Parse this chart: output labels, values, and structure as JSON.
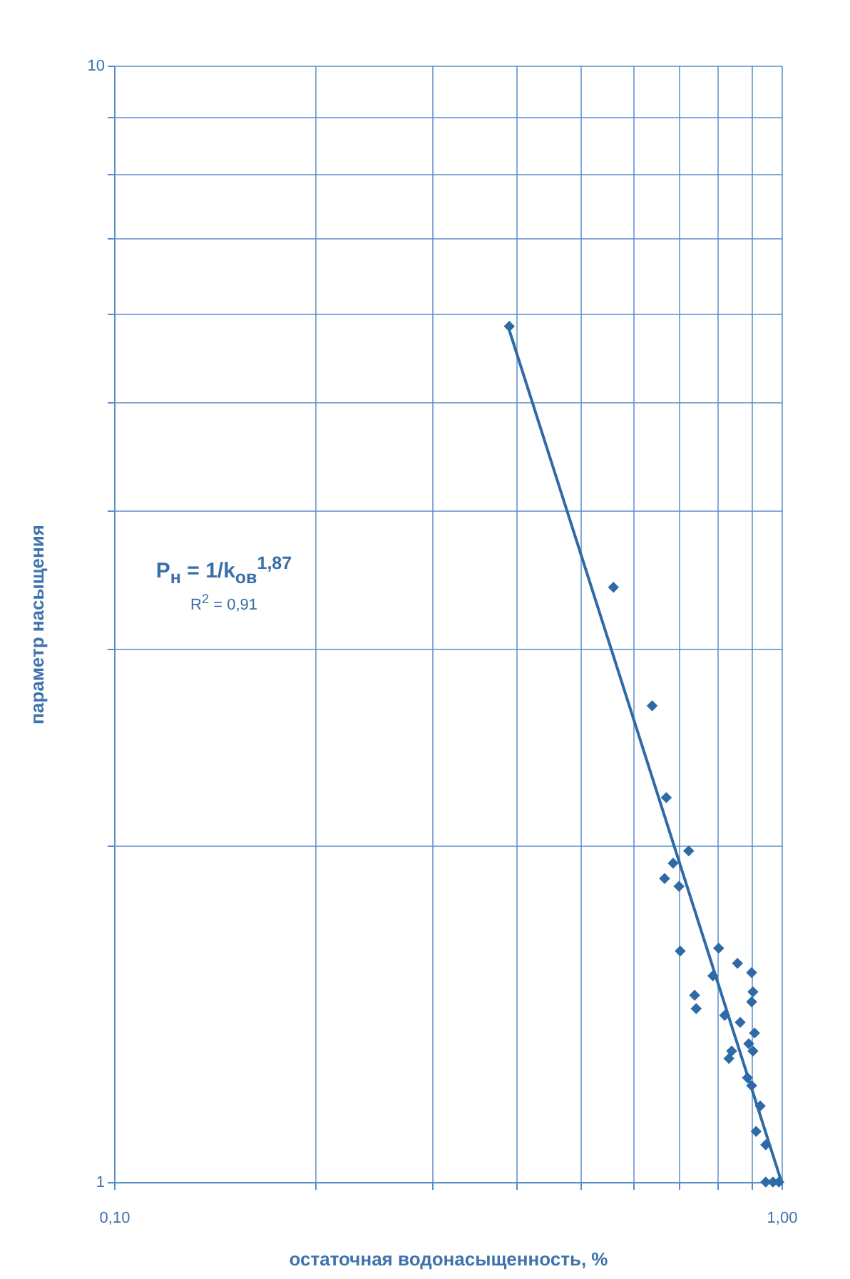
{
  "chart_data": {
    "type": "scatter",
    "xlabel": "остаточная водонасыщенность, %",
    "ylabel": "параметр насыщения",
    "annotations": [
      "P$_{н}$ = 1/k$_{ов}$$^{1,87}$",
      "R$^{2}$ = 0,91"
    ],
    "log": "xy",
    "grid": true,
    "xlim": [
      0.1,
      1
    ],
    "ylim": [
      1,
      10
    ],
    "xticks": [
      {
        "value": 0.1,
        "label": "0,10"
      },
      {
        "value": 0.2,
        "label": null
      },
      {
        "value": 0.3,
        "label": null
      },
      {
        "value": 0.4,
        "label": null
      },
      {
        "value": 0.5,
        "label": null
      },
      {
        "value": 0.6,
        "label": null
      },
      {
        "value": 0.7,
        "label": null
      },
      {
        "value": 0.8,
        "label": null
      },
      {
        "value": 0.9,
        "label": null
      },
      {
        "value": 1,
        "label": "1,00"
      }
    ],
    "yticks": [
      1,
      {
        "value": 2,
        "label": null
      },
      {
        "value": 3,
        "label": null
      },
      {
        "value": 4,
        "label": null
      },
      {
        "value": 5,
        "label": null
      },
      {
        "value": 6,
        "label": null
      },
      {
        "value": 7,
        "label": null
      },
      {
        "value": 8,
        "label": null
      },
      {
        "value": 9,
        "label": null
      },
      10
    ],
    "series": [
      {
        "color": "#2e6aa6",
        "marker": "diamond",
        "x": [
          0.391,
          0.56,
          0.64,
          0.672,
          0.726,
          0.688,
          0.668,
          0.702,
          0.705,
          0.805,
          0.859,
          0.902,
          0.741,
          0.745,
          0.789,
          0.822,
          0.867,
          0.842,
          0.834,
          0.906,
          0.902,
          0.893,
          0.906,
          0.911,
          0.889,
          0.902,
          0.929,
          0.916,
          0.947,
          0.947,
          0.971,
          0.991
        ],
        "values": [
          5.84,
          3.41,
          2.67,
          2.21,
          1.98,
          1.93,
          1.87,
          1.84,
          1.61,
          1.62,
          1.57,
          1.54,
          1.47,
          1.43,
          1.53,
          1.41,
          1.39,
          1.31,
          1.29,
          1.48,
          1.45,
          1.33,
          1.31,
          1.36,
          1.24,
          1.22,
          1.17,
          1.11,
          1.08,
          1,
          1,
          1
        ]
      },
      {
        "type": "line",
        "color": "#2e6aa6",
        "x": [
          0.39,
          1.0
        ],
        "values": [
          5.82,
          1
        ]
      }
    ]
  }
}
